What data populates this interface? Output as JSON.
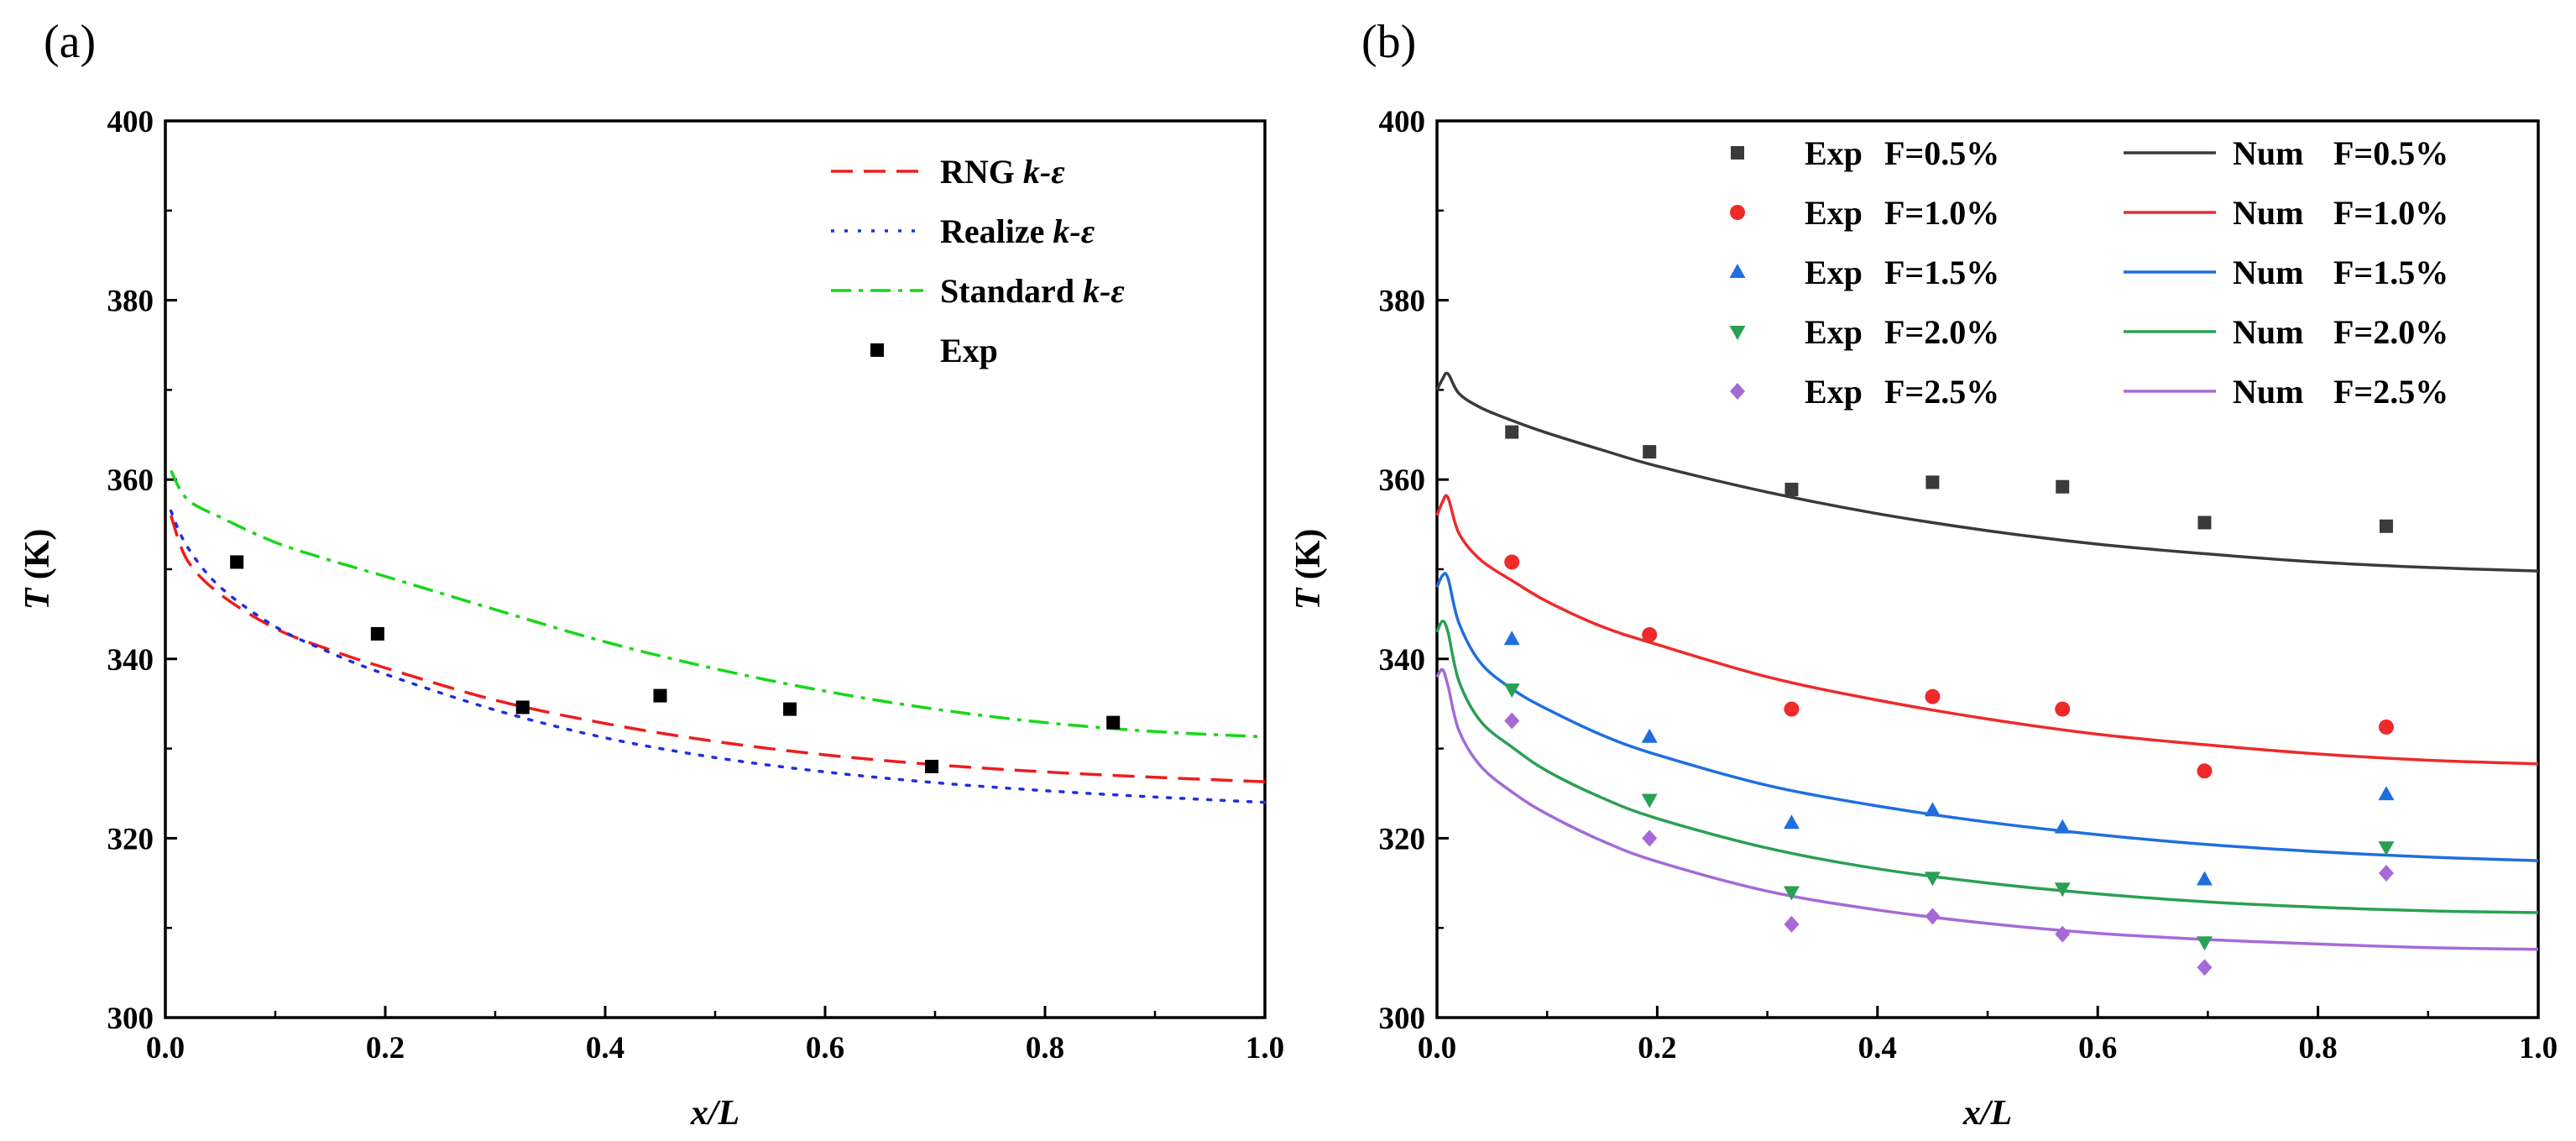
{
  "chart_data": [
    {
      "panel": "(a)",
      "type": "line",
      "title": "",
      "xlabel": "x/L",
      "ylabel": "T (K)",
      "ylabel_symbol": "T",
      "ylabel_unit": "(K)",
      "xlim": [
        0,
        1.0
      ],
      "ylim": [
        300,
        400
      ],
      "xticks": [
        "0.0",
        "0.2",
        "0.4",
        "0.6",
        "0.8",
        "1.0"
      ],
      "yticks": [
        "300",
        "320",
        "340",
        "360",
        "380",
        "400"
      ],
      "legend_position": "top-right",
      "series": [
        {
          "name": "RNG k-ε",
          "label_plain": "RNG ",
          "label_italic": "k-ε",
          "color": "#ee1c1c",
          "style": "dash",
          "x": [
            0.005,
            0.02,
            0.05,
            0.1,
            0.15,
            0.2,
            0.3,
            0.4,
            0.5,
            0.6,
            0.7,
            0.8,
            0.9,
            1.0
          ],
          "y": [
            356.0,
            351.0,
            347.2,
            343.4,
            341.0,
            339.0,
            335.4,
            332.8,
            330.8,
            329.3,
            328.2,
            327.4,
            326.8,
            326.3
          ]
        },
        {
          "name": "Realize k-ε",
          "label_plain": "Realize ",
          "label_italic": "k-ε",
          "color": "#1f2fe0",
          "style": "dot",
          "x": [
            0.005,
            0.02,
            0.05,
            0.1,
            0.15,
            0.2,
            0.3,
            0.4,
            0.5,
            0.6,
            0.7,
            0.8,
            0.9,
            1.0
          ],
          "y": [
            356.5,
            352.5,
            348.0,
            343.6,
            340.7,
            338.3,
            334.3,
            331.2,
            329.0,
            327.4,
            326.2,
            325.3,
            324.6,
            324.0
          ]
        },
        {
          "name": "Standard k-ε",
          "label_plain": "Standard ",
          "label_italic": "k-ε",
          "color": "#19d619",
          "style": "dashdot",
          "x": [
            0.005,
            0.02,
            0.05,
            0.1,
            0.15,
            0.2,
            0.3,
            0.4,
            0.5,
            0.6,
            0.7,
            0.8,
            0.9,
            1.0
          ],
          "y": [
            361.0,
            357.8,
            355.8,
            353.0,
            351.0,
            349.2,
            345.5,
            341.9,
            338.9,
            336.4,
            334.4,
            332.9,
            331.9,
            331.3
          ]
        },
        {
          "name": "Exp",
          "label_plain": "Exp",
          "label_italic": "",
          "color": "#000000",
          "style": "marker-square",
          "x": [
            0.065,
            0.193,
            0.325,
            0.45,
            0.568,
            0.697,
            0.862
          ],
          "y": [
            350.8,
            342.8,
            334.6,
            335.9,
            334.4,
            328.0,
            332.9
          ]
        }
      ]
    },
    {
      "panel": "(b)",
      "type": "line",
      "title": "",
      "xlabel": "x/L",
      "ylabel": "T (K)",
      "ylabel_symbol": "T",
      "ylabel_unit": "(K)",
      "xlim": [
        0,
        1.0
      ],
      "ylim": [
        300,
        400
      ],
      "xticks": [
        "0.0",
        "0.2",
        "0.4",
        "0.6",
        "0.8",
        "1.0"
      ],
      "yticks": [
        "300",
        "320",
        "340",
        "360",
        "380",
        "400"
      ],
      "legend_position": "top",
      "exp_x": [
        0.068,
        0.193,
        0.322,
        0.45,
        0.568,
        0.697,
        0.862
      ],
      "num_x": [
        0.0,
        0.005,
        0.01,
        0.02,
        0.04,
        0.07,
        0.1,
        0.15,
        0.2,
        0.3,
        0.4,
        0.5,
        0.6,
        0.7,
        0.8,
        0.9,
        1.0
      ],
      "series": [
        {
          "F": "F=0.5%",
          "color": "#3a3a3a",
          "marker": "square",
          "exp_label": "Exp",
          "num_label": "Num",
          "exp_y": [
            365.3,
            363.1,
            358.9,
            359.7,
            359.2,
            355.2,
            354.8
          ],
          "num_y": [
            370.0,
            371.2,
            371.8,
            369.6,
            368.0,
            366.5,
            365.2,
            363.3,
            361.5,
            358.6,
            356.2,
            354.3,
            352.8,
            351.7,
            350.8,
            350.2,
            349.8
          ]
        },
        {
          "F": "F=1.0%",
          "color": "#ee2a2a",
          "marker": "circle",
          "exp_label": "Exp",
          "num_label": "Num",
          "exp_y": [
            350.8,
            342.7,
            334.4,
            335.8,
            334.4,
            327.5,
            332.4
          ],
          "num_y": [
            356.0,
            357.5,
            358.0,
            354.0,
            351.0,
            348.6,
            346.4,
            343.6,
            341.6,
            338.0,
            335.4,
            333.3,
            331.6,
            330.4,
            329.4,
            328.7,
            328.3
          ]
        },
        {
          "F": "F=1.5%",
          "color": "#1f6ee0",
          "marker": "triangle-up",
          "exp_y": [
            342.2,
            331.3,
            321.7,
            323.1,
            321.2,
            315.4,
            324.9
          ],
          "exp_label": "Exp",
          "num_label": "Num",
          "num_y": [
            348.0,
            349.3,
            349.0,
            344.0,
            339.5,
            336.5,
            334.4,
            331.5,
            329.3,
            325.9,
            323.6,
            321.8,
            320.4,
            319.3,
            318.5,
            317.9,
            317.5
          ]
        },
        {
          "F": "F=2.0%",
          "color": "#2aa052",
          "marker": "triangle-down",
          "exp_label": "Exp",
          "num_label": "Num",
          "exp_y": [
            336.6,
            324.3,
            314.0,
            315.6,
            314.4,
            308.4,
            319.0
          ],
          "num_y": [
            343.0,
            344.2,
            343.0,
            337.5,
            333.0,
            330.0,
            327.5,
            324.5,
            322.2,
            318.9,
            316.6,
            315.0,
            313.8,
            312.9,
            312.3,
            311.9,
            311.7
          ]
        },
        {
          "F": "F=2.5%",
          "color": "#a56ad8",
          "marker": "diamond",
          "exp_label": "Exp",
          "num_label": "Num",
          "exp_y": [
            333.1,
            320.0,
            310.4,
            311.3,
            309.3,
            305.6,
            316.1
          ],
          "num_y": [
            338.0,
            338.8,
            337.0,
            332.0,
            328.0,
            325.0,
            322.7,
            319.7,
            317.4,
            314.1,
            312.0,
            310.5,
            309.4,
            308.7,
            308.2,
            307.8,
            307.6
          ]
        }
      ]
    }
  ]
}
